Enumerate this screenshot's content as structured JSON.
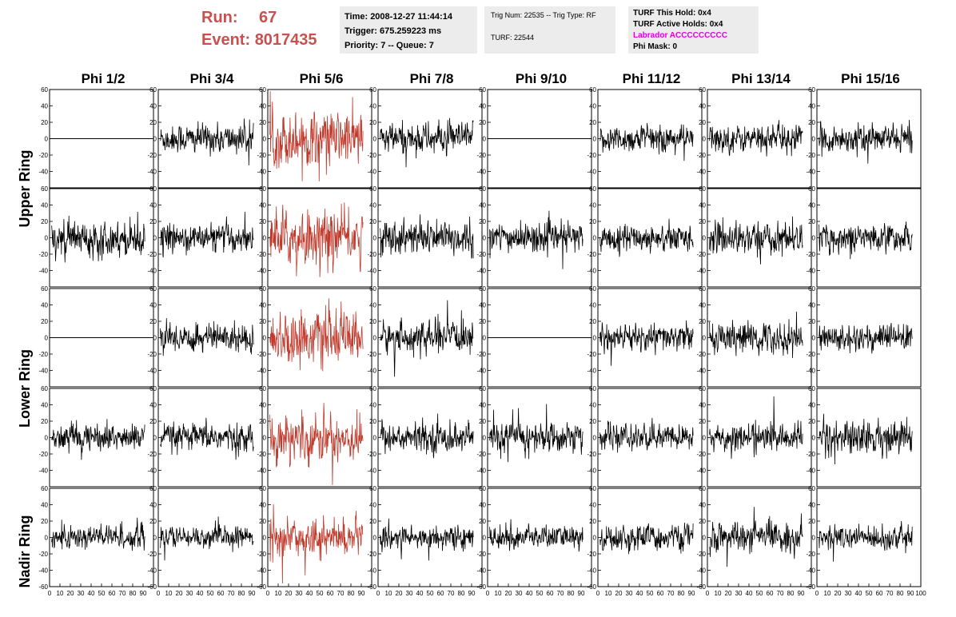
{
  "header": {
    "run_label": "Run:",
    "run_value": "67",
    "event_label": "Event:",
    "event_value": "8017435",
    "time": "Time: 2008-12-27 11:44:14",
    "trigger": "Trigger: 675.259223 ms",
    "priority": "Priority: 7 -- Queue: 7",
    "trig_num": "Trig Num: 22535 -- Trig Type: RF",
    "turf": "TURF: 22544",
    "turf_this_hold": "TURF This Hold: 0x4",
    "turf_active_holds": "TURF Active Holds: 0x4",
    "labrador": "Labrador ACCCCCCCCC",
    "phi_mask": "Phi Mask: 0",
    "labrador_color": "#e000e0",
    "runinfo_color": "#c9504e"
  },
  "chart_data": {
    "type": "line",
    "columns": [
      "Phi 1/2",
      "Phi 3/4",
      "Phi 5/6",
      "Phi 7/8",
      "Phi 9/10",
      "Phi 11/12",
      "Phi 13/14",
      "Phi 15/16"
    ],
    "ring_labels": [
      "Upper Ring",
      "Lower Ring",
      "Nadir Ring"
    ],
    "rows": 5,
    "xlim": [
      0,
      100
    ],
    "ylim": [
      -60,
      60
    ],
    "y_ticks": [
      60,
      40,
      20,
      0,
      -20,
      -40
    ],
    "y_ticks_bottom": [
      60,
      40,
      20,
      0,
      -20,
      -40,
      -60
    ],
    "x_ticks": [
      0,
      10,
      20,
      30,
      40,
      50,
      60,
      70,
      80,
      90,
      100
    ],
    "highlight_column": 2,
    "highlight_color": "#c0392b",
    "trace_color": "#000000",
    "flat_panels": [
      [
        0,
        0
      ],
      [
        0,
        4
      ],
      [
        2,
        0
      ],
      [
        2,
        4
      ]
    ],
    "panel_amplitudes": [
      [
        0,
        15,
        28,
        16,
        0,
        14,
        14,
        14
      ],
      [
        18,
        14,
        28,
        18,
        15,
        14,
        16,
        14
      ],
      [
        0,
        15,
        26,
        16,
        0,
        14,
        16,
        14
      ],
      [
        14,
        14,
        24,
        15,
        16,
        13,
        14,
        18
      ],
      [
        13,
        11,
        18,
        12,
        12,
        13,
        15,
        12
      ]
    ],
    "samples_per_trace": 260
  }
}
